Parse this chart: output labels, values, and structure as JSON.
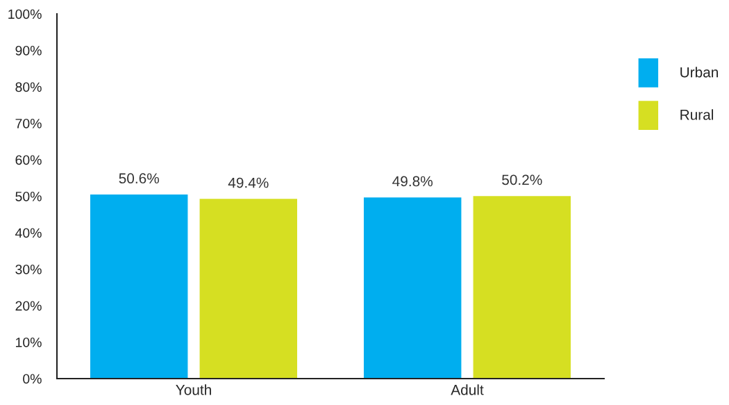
{
  "chart_data": {
    "type": "bar",
    "categories": [
      "Youth",
      "Adult"
    ],
    "series": [
      {
        "name": "Urban",
        "color": "#00aeef",
        "values": [
          50.6,
          49.8
        ],
        "value_labels": [
          "50.6%",
          "49.8%"
        ]
      },
      {
        "name": "Rural",
        "color": "#d6df22",
        "values": [
          49.4,
          50.2
        ],
        "value_labels": [
          "49.4%",
          "50.2%"
        ]
      }
    ],
    "ylim": [
      0,
      100
    ],
    "yticks": [
      {
        "value": 0,
        "label": "0%"
      },
      {
        "value": 10,
        "label": "10%"
      },
      {
        "value": 20,
        "label": "20%"
      },
      {
        "value": 30,
        "label": "30%"
      },
      {
        "value": 40,
        "label": "40%"
      },
      {
        "value": 50,
        "label": "50%"
      },
      {
        "value": 60,
        "label": "60%"
      },
      {
        "value": 70,
        "label": "70%"
      },
      {
        "value": 80,
        "label": "80%"
      },
      {
        "value": 90,
        "label": "90%"
      },
      {
        "value": 100,
        "label": "100%"
      }
    ],
    "grid": false,
    "legend": "right"
  }
}
